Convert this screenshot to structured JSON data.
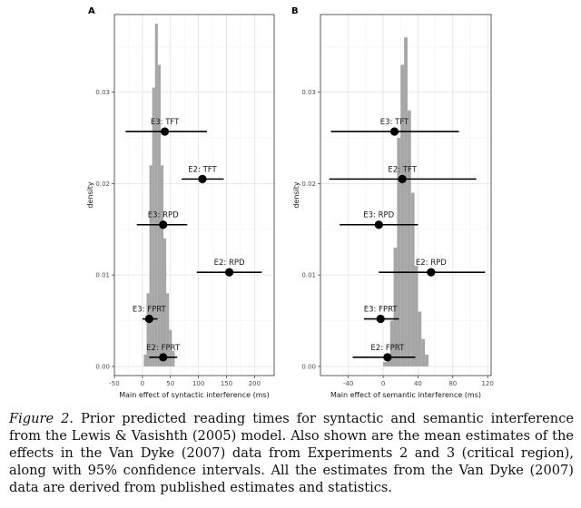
{
  "chart_data": [
    {
      "panel": "A",
      "type": "bar",
      "xlabel": "Main effect of syntactic interference (ms)",
      "ylabel": "density",
      "xlim": [
        -50,
        235
      ],
      "ylim": [
        -0.001,
        0.0385
      ],
      "xticks": [
        -50,
        0,
        50,
        100,
        150,
        200
      ],
      "yticks": [
        0.0,
        0.01,
        0.02,
        0.03
      ],
      "ytick_labels": [
        "0.00",
        "0.01",
        "0.02",
        "0.03"
      ],
      "hist": {
        "binwidth": 5,
        "bins": [
          [
            5,
            0.0013
          ],
          [
            10,
            0.008
          ],
          [
            15,
            0.022
          ],
          [
            20,
            0.0305
          ],
          [
            25,
            0.0375
          ],
          [
            30,
            0.033
          ],
          [
            35,
            0.022
          ],
          [
            40,
            0.014
          ],
          [
            45,
            0.008
          ],
          [
            50,
            0.004
          ],
          [
            55,
            0.0017
          ]
        ]
      },
      "estimates": [
        {
          "label": "E3: TFT",
          "mean": 40,
          "ci": [
            -30,
            115
          ],
          "density": 0.0257
        },
        {
          "label": "E2: TFT",
          "mean": 107,
          "ci": [
            70,
            145
          ],
          "density": 0.0205
        },
        {
          "label": "E3: RPD",
          "mean": 37,
          "ci": [
            -10,
            80
          ],
          "density": 0.0155
        },
        {
          "label": "E2: RPD",
          "mean": 155,
          "ci": [
            97,
            213
          ],
          "density": 0.0103
        },
        {
          "label": "E3: FPRT",
          "mean": 12,
          "ci": [
            0,
            27
          ],
          "density": 0.0052
        },
        {
          "label": "E2: FPRT",
          "mean": 37,
          "ci": [
            12,
            62
          ],
          "density": 0.001
        }
      ],
      "grid": true
    },
    {
      "panel": "B",
      "type": "bar",
      "xlabel": "Main effect of semantic interference (ms)",
      "ylabel": "density",
      "xlim": [
        -72,
        124
      ],
      "ylim": [
        -0.001,
        0.0385
      ],
      "xticks": [
        -40,
        0,
        40,
        80,
        120
      ],
      "yticks": [
        0.0,
        0.01,
        0.02,
        0.03
      ],
      "ytick_labels": [
        "0.00",
        "0.01",
        "0.02",
        "0.03"
      ],
      "hist": {
        "binwidth": 4,
        "bins": [
          [
            2,
            0.0005
          ],
          [
            6,
            0.0013
          ],
          [
            10,
            0.005
          ],
          [
            14,
            0.013
          ],
          [
            18,
            0.025
          ],
          [
            22,
            0.033
          ],
          [
            26,
            0.036
          ],
          [
            30,
            0.028
          ],
          [
            34,
            0.019
          ],
          [
            38,
            0.011
          ],
          [
            42,
            0.006
          ],
          [
            46,
            0.003
          ],
          [
            50,
            0.0013
          ]
        ]
      },
      "estimates": [
        {
          "label": "E3: TFT",
          "mean": 13,
          "ci": [
            -60,
            87
          ],
          "density": 0.0257
        },
        {
          "label": "E2: TFT",
          "mean": 22,
          "ci": [
            -62,
            107
          ],
          "density": 0.0205
        },
        {
          "label": "E3: RPD",
          "mean": -5,
          "ci": [
            -50,
            40
          ],
          "density": 0.0155
        },
        {
          "label": "E2: RPD",
          "mean": 55,
          "ci": [
            -5,
            117
          ],
          "density": 0.0103
        },
        {
          "label": "E3: FPRT",
          "mean": -3,
          "ci": [
            -22,
            18
          ],
          "density": 0.0052
        },
        {
          "label": "E2: FPRT",
          "mean": 5,
          "ci": [
            -35,
            37
          ],
          "density": 0.001
        }
      ],
      "grid": true
    }
  ],
  "caption": {
    "figure_label": "Figure 2",
    "text": ". Prior predicted reading times for syntactic and semantic interference from the Lewis & Vasishth (2005) model. Also shown are the mean estimates of the effects in the Van Dyke (2007) data from Experiments 2 and 3 (critical region), along with 95% confidence intervals. All the estimates from the Van Dyke (2007) data are derived from published estimates and statistics."
  }
}
